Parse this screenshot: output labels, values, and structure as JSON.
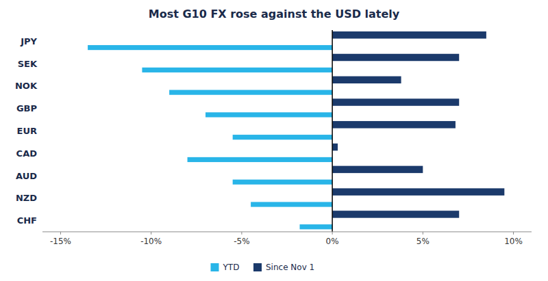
{
  "chart_data": {
    "type": "bar",
    "orientation": "horizontal",
    "title": "Most G10 FX rose against the USD lately",
    "categories": [
      "JPY",
      "SEK",
      "NOK",
      "GBP",
      "EUR",
      "CAD",
      "AUD",
      "NZD",
      "CHF"
    ],
    "series": [
      {
        "name": "YTD",
        "color": "#29B5E8",
        "values": [
          -13.5,
          -10.5,
          -9.0,
          -7.0,
          -5.5,
          -8.0,
          -5.5,
          -4.5,
          -1.8
        ]
      },
      {
        "name": "Since Nov 1",
        "color": "#1B3A6B",
        "values": [
          8.5,
          7.0,
          3.8,
          7.0,
          6.8,
          0.3,
          5.0,
          9.5,
          7.0
        ]
      }
    ],
    "xlim": [
      -16,
      11
    ],
    "xticks": [
      {
        "value": -15,
        "label": "-15%"
      },
      {
        "value": -10,
        "label": "-10%"
      },
      {
        "value": -5,
        "label": "-5%"
      },
      {
        "value": 0,
        "label": "0%"
      },
      {
        "value": 5,
        "label": "5%"
      },
      {
        "value": 10,
        "label": "10%"
      }
    ],
    "grid": false,
    "legend": "bottom"
  }
}
